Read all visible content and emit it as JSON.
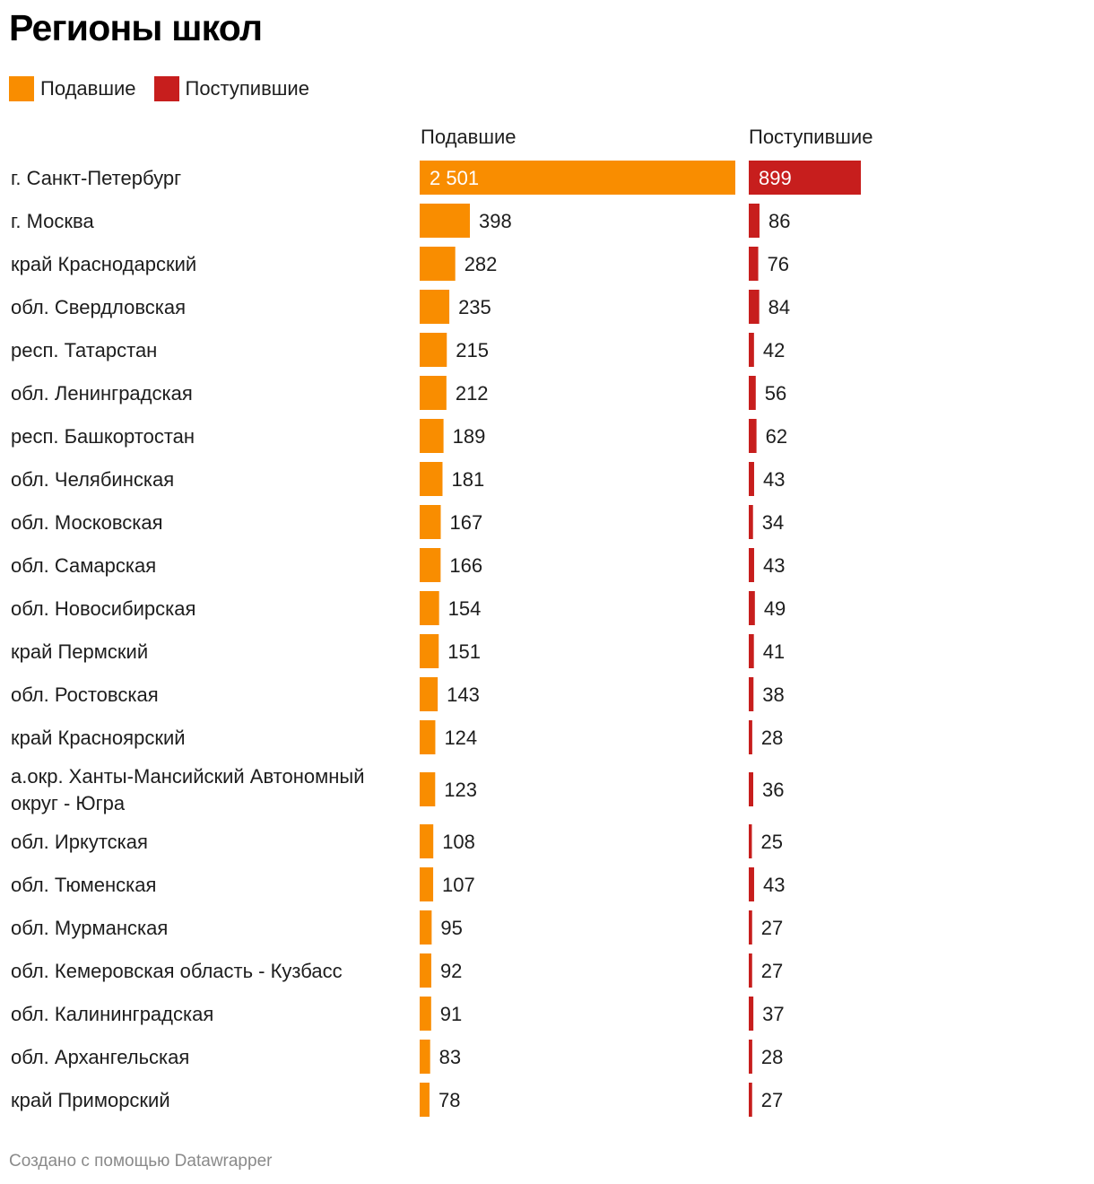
{
  "title": "Регионы школ",
  "legend": [
    {
      "label": "Подавшие",
      "color": "#f98d00"
    },
    {
      "label": "Поступившие",
      "color": "#c71e1d"
    }
  ],
  "footer": "Создано с помощью Datawrapper",
  "chart_data": {
    "type": "bar",
    "columns": [
      "Подавшие",
      "Поступившие"
    ],
    "categories": [
      "г. Санкт-Петербург",
      "г. Москва",
      "край Краснодарский",
      "обл. Свердловская",
      "респ. Татарстан",
      "обл. Ленинградская",
      "респ. Башкортостан",
      "обл. Челябинская",
      "обл. Московская",
      "обл. Самарская",
      "обл. Новосибирская",
      "край Пермский",
      "обл. Ростовская",
      "край Красноярский",
      "а.окр. Ханты-Мансийский Автономный округ - Югра",
      "обл. Иркутская",
      "обл. Тюменская",
      "обл. Мурманская",
      "обл. Кемеровская область - Кузбасс",
      "обл. Калининградская",
      "обл. Архангельская",
      "край Приморский"
    ],
    "series": [
      {
        "name": "Подавшие",
        "color": "#f98d00",
        "values": [
          2501,
          398,
          282,
          235,
          215,
          212,
          189,
          181,
          167,
          166,
          154,
          151,
          143,
          124,
          123,
          108,
          107,
          95,
          92,
          91,
          83,
          78
        ],
        "labels": [
          "2 501",
          "398",
          "282",
          "235",
          "215",
          "212",
          "189",
          "181",
          "167",
          "166",
          "154",
          "151",
          "143",
          "124",
          "123",
          "108",
          "107",
          "95",
          "92",
          "91",
          "83",
          "78"
        ]
      },
      {
        "name": "Поступившие",
        "color": "#c71e1d",
        "values": [
          899,
          86,
          76,
          84,
          42,
          56,
          62,
          43,
          34,
          43,
          49,
          41,
          38,
          28,
          36,
          25,
          43,
          27,
          27,
          37,
          28,
          27
        ],
        "labels": [
          "899",
          "86",
          "76",
          "84",
          "42",
          "56",
          "62",
          "43",
          "34",
          "43",
          "49",
          "41",
          "38",
          "28",
          "36",
          "25",
          "43",
          "27",
          "27",
          "37",
          "28",
          "27"
        ]
      }
    ]
  }
}
